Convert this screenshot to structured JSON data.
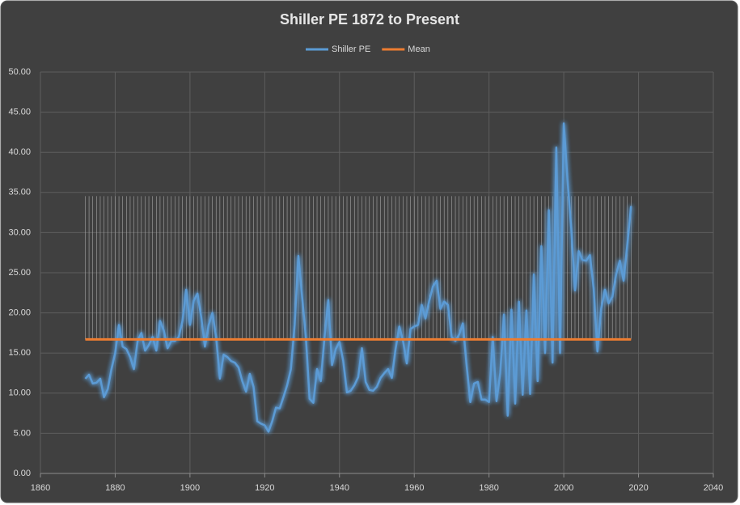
{
  "chart_data": {
    "type": "line",
    "title": "Shiller PE 1872 to Present",
    "x": [
      1872,
      1873,
      1874,
      1875,
      1876,
      1877,
      1878,
      1879,
      1880,
      1881,
      1882,
      1883,
      1884,
      1885,
      1886,
      1887,
      1888,
      1889,
      1890,
      1891,
      1892,
      1893,
      1894,
      1895,
      1896,
      1897,
      1898,
      1899,
      1900,
      1901,
      1902,
      1903,
      1904,
      1905,
      1906,
      1907,
      1908,
      1909,
      1910,
      1911,
      1912,
      1913,
      1914,
      1915,
      1916,
      1917,
      1918,
      1919,
      1920,
      1921,
      1922,
      1923,
      1924,
      1925,
      1926,
      1927,
      1928,
      1929,
      1930,
      1931,
      1932,
      1933,
      1934,
      1935,
      1936,
      1937,
      1938,
      1939,
      1940,
      1941,
      1942,
      1943,
      1944,
      1945,
      1946,
      1947,
      1948,
      1949,
      1950,
      1951,
      1952,
      1953,
      1954,
      1955,
      1956,
      1957,
      1958,
      1959,
      1960,
      1961,
      1962,
      1963,
      1964,
      1965,
      1966,
      1967,
      1968,
      1969,
      1970,
      1971,
      1972,
      1973,
      1974,
      1975,
      1976,
      1977,
      1978,
      1979,
      1980,
      1981,
      1982,
      1983,
      1984,
      1985,
      1986,
      1987,
      1988,
      1989,
      1990,
      1991,
      1992,
      1993,
      1994,
      1995,
      1996,
      1997,
      1998,
      1999,
      2000,
      2001,
      2002,
      2003,
      2004,
      2005,
      2006,
      2007,
      2008,
      2009,
      2010,
      2011,
      2012,
      2013,
      2014,
      2015,
      2016,
      2017,
      2018
    ],
    "series": [
      {
        "name": "Shiller PE",
        "color": "#5b9bd5",
        "values": [
          11.8,
          12.3,
          11.2,
          11.3,
          11.8,
          9.5,
          10.5,
          13,
          15,
          18.5,
          15.8,
          15.5,
          14.5,
          13,
          16.5,
          17.5,
          15.3,
          16,
          17,
          15.3,
          19,
          17.8,
          15.6,
          16.5,
          16.5,
          17,
          19,
          22.9,
          18.5,
          21.5,
          22.4,
          19.5,
          15.8,
          18.5,
          20,
          17,
          11.8,
          14.8,
          14.5,
          14,
          13.8,
          13.2,
          11.5,
          10.2,
          12.4,
          10.8,
          6.5,
          6.2,
          6,
          5.2,
          6.5,
          8.2,
          8.1,
          9.5,
          11,
          13,
          18.5,
          27.1,
          22,
          17,
          9.3,
          8.8,
          13,
          11.5,
          17,
          21.6,
          13.5,
          15.5,
          16.4,
          14,
          10.1,
          10.3,
          11,
          12,
          15.6,
          11.4,
          10.4,
          10.3,
          10.8,
          11.9,
          12.5,
          13,
          11.9,
          15.5,
          18.3,
          16.5,
          13.7,
          18,
          18.3,
          18.5,
          21,
          19.3,
          21.5,
          23.3,
          24,
          20.5,
          21.4,
          21,
          17,
          16.5,
          17.3,
          18.7,
          13.5,
          8.9,
          11.2,
          11.4,
          9.2,
          9.2,
          8.9,
          17,
          9,
          12.5,
          19.8,
          7.2,
          20.4,
          8.7,
          21.4,
          9.8,
          20.3,
          9.9,
          24.8,
          11.5,
          28.3,
          15,
          32.8,
          13.8,
          40.6,
          15,
          43.6,
          36.5,
          30.5,
          22.8,
          27.7,
          26.6,
          26.5,
          27.2,
          23,
          15.2,
          20.5,
          22.9,
          21.2,
          22,
          24.8,
          26.5,
          24,
          28.5,
          33.3
        ]
      },
      {
        "name": "Mean",
        "color": "#ed7d31",
        "values": [
          16.7,
          16.7,
          16.7,
          16.7,
          16.7,
          16.7,
          16.7,
          16.7,
          16.7,
          16.7,
          16.7,
          16.7,
          16.7,
          16.7,
          16.7,
          16.7,
          16.7,
          16.7,
          16.7,
          16.7,
          16.7,
          16.7,
          16.7,
          16.7,
          16.7,
          16.7,
          16.7,
          16.7,
          16.7,
          16.7,
          16.7,
          16.7,
          16.7,
          16.7,
          16.7,
          16.7,
          16.7,
          16.7,
          16.7,
          16.7,
          16.7,
          16.7,
          16.7,
          16.7,
          16.7,
          16.7,
          16.7,
          16.7,
          16.7,
          16.7,
          16.7,
          16.7,
          16.7,
          16.7,
          16.7,
          16.7,
          16.7,
          16.7,
          16.7,
          16.7,
          16.7,
          16.7,
          16.7,
          16.7,
          16.7,
          16.7,
          16.7,
          16.7,
          16.7,
          16.7,
          16.7,
          16.7,
          16.7,
          16.7,
          16.7,
          16.7,
          16.7,
          16.7,
          16.7,
          16.7,
          16.7,
          16.7,
          16.7,
          16.7,
          16.7,
          16.7,
          16.7,
          16.7,
          16.7,
          16.7,
          16.7,
          16.7,
          16.7,
          16.7,
          16.7,
          16.7,
          16.7,
          16.7,
          16.7,
          16.7,
          16.7,
          16.7,
          16.7,
          16.7,
          16.7,
          16.7,
          16.7,
          16.7,
          16.7,
          16.7,
          16.7,
          16.7,
          16.7,
          16.7,
          16.7,
          16.7,
          16.7,
          16.7,
          16.7,
          16.7,
          16.7,
          16.7,
          16.7,
          16.7,
          16.7,
          16.7,
          16.7,
          16.7,
          16.7,
          16.7,
          16.7,
          16.7,
          16.7,
          16.7,
          16.7,
          16.7,
          16.7,
          16.7,
          16.7,
          16.7,
          16.7,
          16.7,
          16.7,
          16.7,
          16.7,
          16.7,
          16.7
        ]
      }
    ],
    "xlim": [
      1860,
      2040
    ],
    "xticks": [
      1860,
      1880,
      1900,
      1920,
      1940,
      1960,
      1980,
      2000,
      2020,
      2040
    ],
    "ylim": [
      0,
      50
    ],
    "yticks": [
      {
        "value": 0,
        "label": "0.00"
      },
      {
        "value": 5,
        "label": "5.00"
      },
      {
        "value": 10,
        "label": "10.00"
      },
      {
        "value": 15,
        "label": "15.00"
      },
      {
        "value": 20,
        "label": "20.00"
      },
      {
        "value": 25,
        "label": "25.00"
      },
      {
        "value": 30,
        "label": "30.00"
      },
      {
        "value": 35,
        "label": "35.00"
      },
      {
        "value": 40,
        "label": "40.00"
      },
      {
        "value": 45,
        "label": "45.00"
      },
      {
        "value": 50,
        "label": "50.00"
      }
    ],
    "grid": true,
    "legend": "top"
  }
}
